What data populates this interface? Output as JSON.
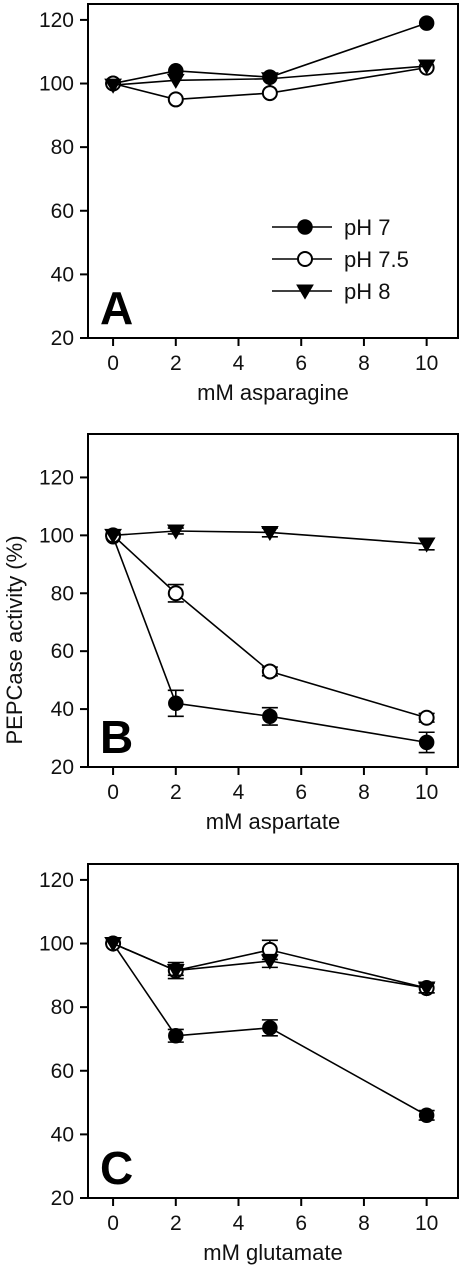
{
  "figure": {
    "ylabel": "PEPCase activity (%)"
  },
  "chart_data": [
    {
      "type": "line",
      "panel": "A",
      "xlabel": "mM asparagine",
      "ylabel": "",
      "xlim": [
        -0.8,
        11
      ],
      "ylim": [
        20,
        125
      ],
      "xticks": [
        0,
        2,
        4,
        6,
        8,
        10
      ],
      "yticks": [
        20,
        40,
        60,
        80,
        100,
        120
      ],
      "x": [
        0,
        2,
        5,
        10
      ],
      "legend": "inside, lower-right",
      "series": [
        {
          "name": "pH 7",
          "marker": "filled-circle",
          "values": [
            100,
            104,
            102,
            119
          ],
          "errors": [
            0,
            0,
            0,
            0
          ]
        },
        {
          "name": "pH 7.5",
          "marker": "open-circle",
          "values": [
            100,
            95,
            97,
            105
          ],
          "errors": [
            0,
            0,
            0,
            0
          ]
        },
        {
          "name": "pH 8",
          "marker": "filled-triangle-down",
          "values": [
            99.5,
            101,
            101.5,
            105.5
          ],
          "errors": [
            0,
            0,
            0,
            0
          ]
        }
      ]
    },
    {
      "type": "line",
      "panel": "B",
      "xlabel": "mM aspartate",
      "ylabel": "",
      "xlim": [
        -0.8,
        11
      ],
      "ylim": [
        20,
        135
      ],
      "xticks": [
        0,
        2,
        4,
        6,
        8,
        10
      ],
      "yticks": [
        20,
        40,
        60,
        80,
        100,
        120
      ],
      "x": [
        0,
        2,
        5,
        10
      ],
      "legend": "none",
      "series": [
        {
          "name": "pH 7",
          "marker": "filled-circle",
          "values": [
            99.5,
            42,
            37.5,
            28.5
          ],
          "errors": [
            0,
            4.5,
            3,
            3.5
          ]
        },
        {
          "name": "pH 7.5",
          "marker": "open-circle",
          "values": [
            100,
            80,
            53,
            37
          ],
          "errors": [
            0,
            3,
            1.5,
            1.5
          ]
        },
        {
          "name": "pH 8",
          "marker": "filled-triangle-down",
          "values": [
            100,
            101.5,
            101,
            97
          ],
          "errors": [
            0,
            1,
            1.5,
            2
          ]
        }
      ]
    },
    {
      "type": "line",
      "panel": "C",
      "xlabel": "mM glutamate",
      "ylabel": "",
      "xlim": [
        -0.8,
        11
      ],
      "ylim": [
        20,
        125
      ],
      "xticks": [
        0,
        2,
        4,
        6,
        8,
        10
      ],
      "yticks": [
        20,
        40,
        60,
        80,
        100,
        120
      ],
      "x": [
        0,
        2,
        5,
        10
      ],
      "legend": "none",
      "series": [
        {
          "name": "pH 7",
          "marker": "filled-circle",
          "values": [
            100,
            71,
            73.5,
            46
          ],
          "errors": [
            0,
            2,
            2.5,
            1.5
          ]
        },
        {
          "name": "pH 7.5",
          "marker": "open-circle",
          "values": [
            100,
            91.5,
            98,
            86
          ],
          "errors": [
            0,
            2.5,
            3,
            1.5
          ]
        },
        {
          "name": "pH 8",
          "marker": "filled-triangle-down",
          "values": [
            100,
            91.5,
            94.5,
            86
          ],
          "errors": [
            0,
            1.5,
            2,
            1.5
          ]
        }
      ]
    }
  ]
}
